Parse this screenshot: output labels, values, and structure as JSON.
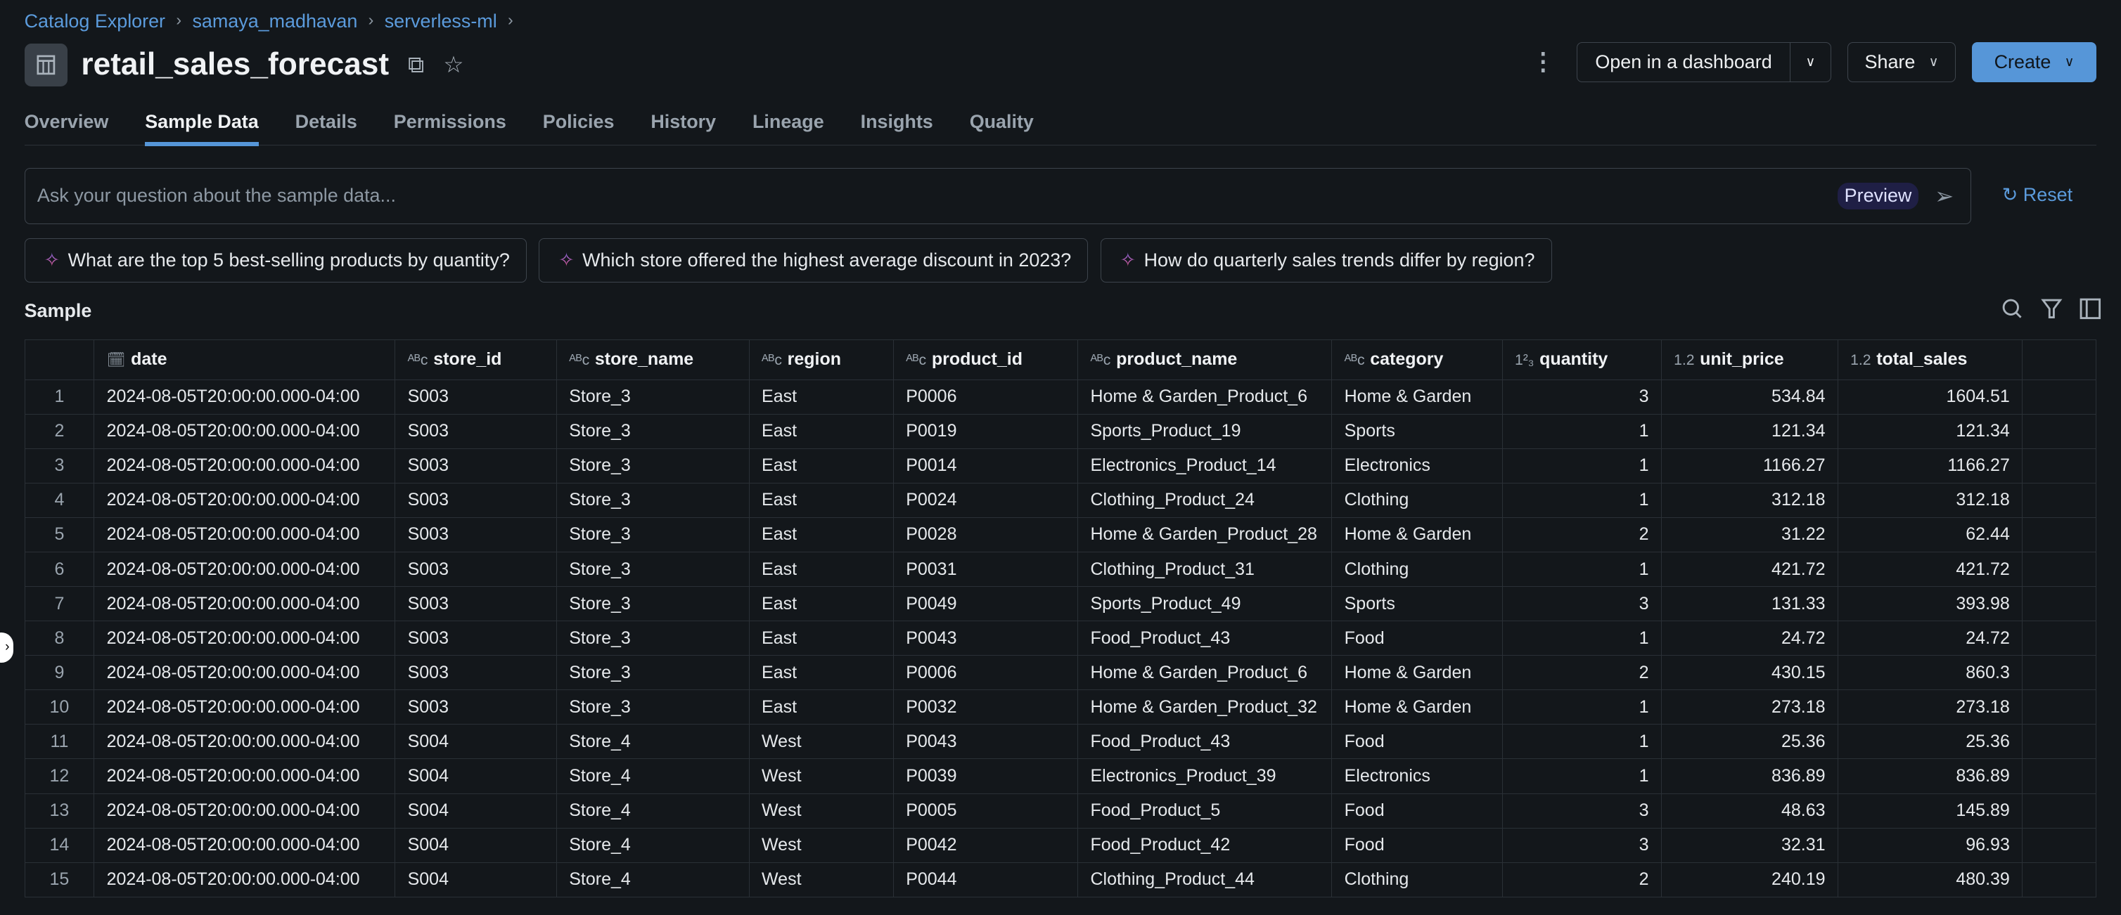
{
  "breadcrumbs": [
    "Catalog Explorer",
    "samaya_madhavan",
    "serverless-ml"
  ],
  "title": "retail_sales_forecast",
  "actions": {
    "open_dashboard": "Open in a dashboard",
    "share": "Share",
    "create": "Create"
  },
  "tabs": [
    "Overview",
    "Sample Data",
    "Details",
    "Permissions",
    "Policies",
    "History",
    "Lineage",
    "Insights",
    "Quality"
  ],
  "active_tab": "Sample Data",
  "ask": {
    "placeholder": "Ask your question about the sample data...",
    "preview_badge": "Preview",
    "reset": "Reset"
  },
  "suggestions": [
    "What are the top 5 best-selling products by quantity?",
    "Which store offered the highest average discount in 2023?",
    "How do quarterly sales trends differ by region?"
  ],
  "sample_label": "Sample",
  "columns": [
    {
      "name": "date",
      "type": "timestamp"
    },
    {
      "name": "store_id",
      "type": "ABC"
    },
    {
      "name": "store_name",
      "type": "ABC"
    },
    {
      "name": "region",
      "type": "ABC"
    },
    {
      "name": "product_id",
      "type": "ABC"
    },
    {
      "name": "product_name",
      "type": "ABC"
    },
    {
      "name": "category",
      "type": "ABC"
    },
    {
      "name": "quantity",
      "type": "123"
    },
    {
      "name": "unit_price",
      "type": "1.2"
    },
    {
      "name": "total_sales",
      "type": "1.2"
    }
  ],
  "rows": [
    [
      "1",
      "2024-08-05T20:00:00.000-04:00",
      "S003",
      "Store_3",
      "East",
      "P0006",
      "Home & Garden_Product_6",
      "Home & Garden",
      "3",
      "534.84",
      "1604.51"
    ],
    [
      "2",
      "2024-08-05T20:00:00.000-04:00",
      "S003",
      "Store_3",
      "East",
      "P0019",
      "Sports_Product_19",
      "Sports",
      "1",
      "121.34",
      "121.34"
    ],
    [
      "3",
      "2024-08-05T20:00:00.000-04:00",
      "S003",
      "Store_3",
      "East",
      "P0014",
      "Electronics_Product_14",
      "Electronics",
      "1",
      "1166.27",
      "1166.27"
    ],
    [
      "4",
      "2024-08-05T20:00:00.000-04:00",
      "S003",
      "Store_3",
      "East",
      "P0024",
      "Clothing_Product_24",
      "Clothing",
      "1",
      "312.18",
      "312.18"
    ],
    [
      "5",
      "2024-08-05T20:00:00.000-04:00",
      "S003",
      "Store_3",
      "East",
      "P0028",
      "Home & Garden_Product_28",
      "Home & Garden",
      "2",
      "31.22",
      "62.44"
    ],
    [
      "6",
      "2024-08-05T20:00:00.000-04:00",
      "S003",
      "Store_3",
      "East",
      "P0031",
      "Clothing_Product_31",
      "Clothing",
      "1",
      "421.72",
      "421.72"
    ],
    [
      "7",
      "2024-08-05T20:00:00.000-04:00",
      "S003",
      "Store_3",
      "East",
      "P0049",
      "Sports_Product_49",
      "Sports",
      "3",
      "131.33",
      "393.98"
    ],
    [
      "8",
      "2024-08-05T20:00:00.000-04:00",
      "S003",
      "Store_3",
      "East",
      "P0043",
      "Food_Product_43",
      "Food",
      "1",
      "24.72",
      "24.72"
    ],
    [
      "9",
      "2024-08-05T20:00:00.000-04:00",
      "S003",
      "Store_3",
      "East",
      "P0006",
      "Home & Garden_Product_6",
      "Home & Garden",
      "2",
      "430.15",
      "860.3"
    ],
    [
      "10",
      "2024-08-05T20:00:00.000-04:00",
      "S003",
      "Store_3",
      "East",
      "P0032",
      "Home & Garden_Product_32",
      "Home & Garden",
      "1",
      "273.18",
      "273.18"
    ],
    [
      "11",
      "2024-08-05T20:00:00.000-04:00",
      "S004",
      "Store_4",
      "West",
      "P0043",
      "Food_Product_43",
      "Food",
      "1",
      "25.36",
      "25.36"
    ],
    [
      "12",
      "2024-08-05T20:00:00.000-04:00",
      "S004",
      "Store_4",
      "West",
      "P0039",
      "Electronics_Product_39",
      "Electronics",
      "1",
      "836.89",
      "836.89"
    ],
    [
      "13",
      "2024-08-05T20:00:00.000-04:00",
      "S004",
      "Store_4",
      "West",
      "P0005",
      "Food_Product_5",
      "Food",
      "3",
      "48.63",
      "145.89"
    ],
    [
      "14",
      "2024-08-05T20:00:00.000-04:00",
      "S004",
      "Store_4",
      "West",
      "P0042",
      "Food_Product_42",
      "Food",
      "3",
      "32.31",
      "96.93"
    ],
    [
      "15",
      "2024-08-05T20:00:00.000-04:00",
      "S004",
      "Store_4",
      "West",
      "P0044",
      "Clothing_Product_44",
      "Clothing",
      "2",
      "240.19",
      "480.39"
    ]
  ]
}
